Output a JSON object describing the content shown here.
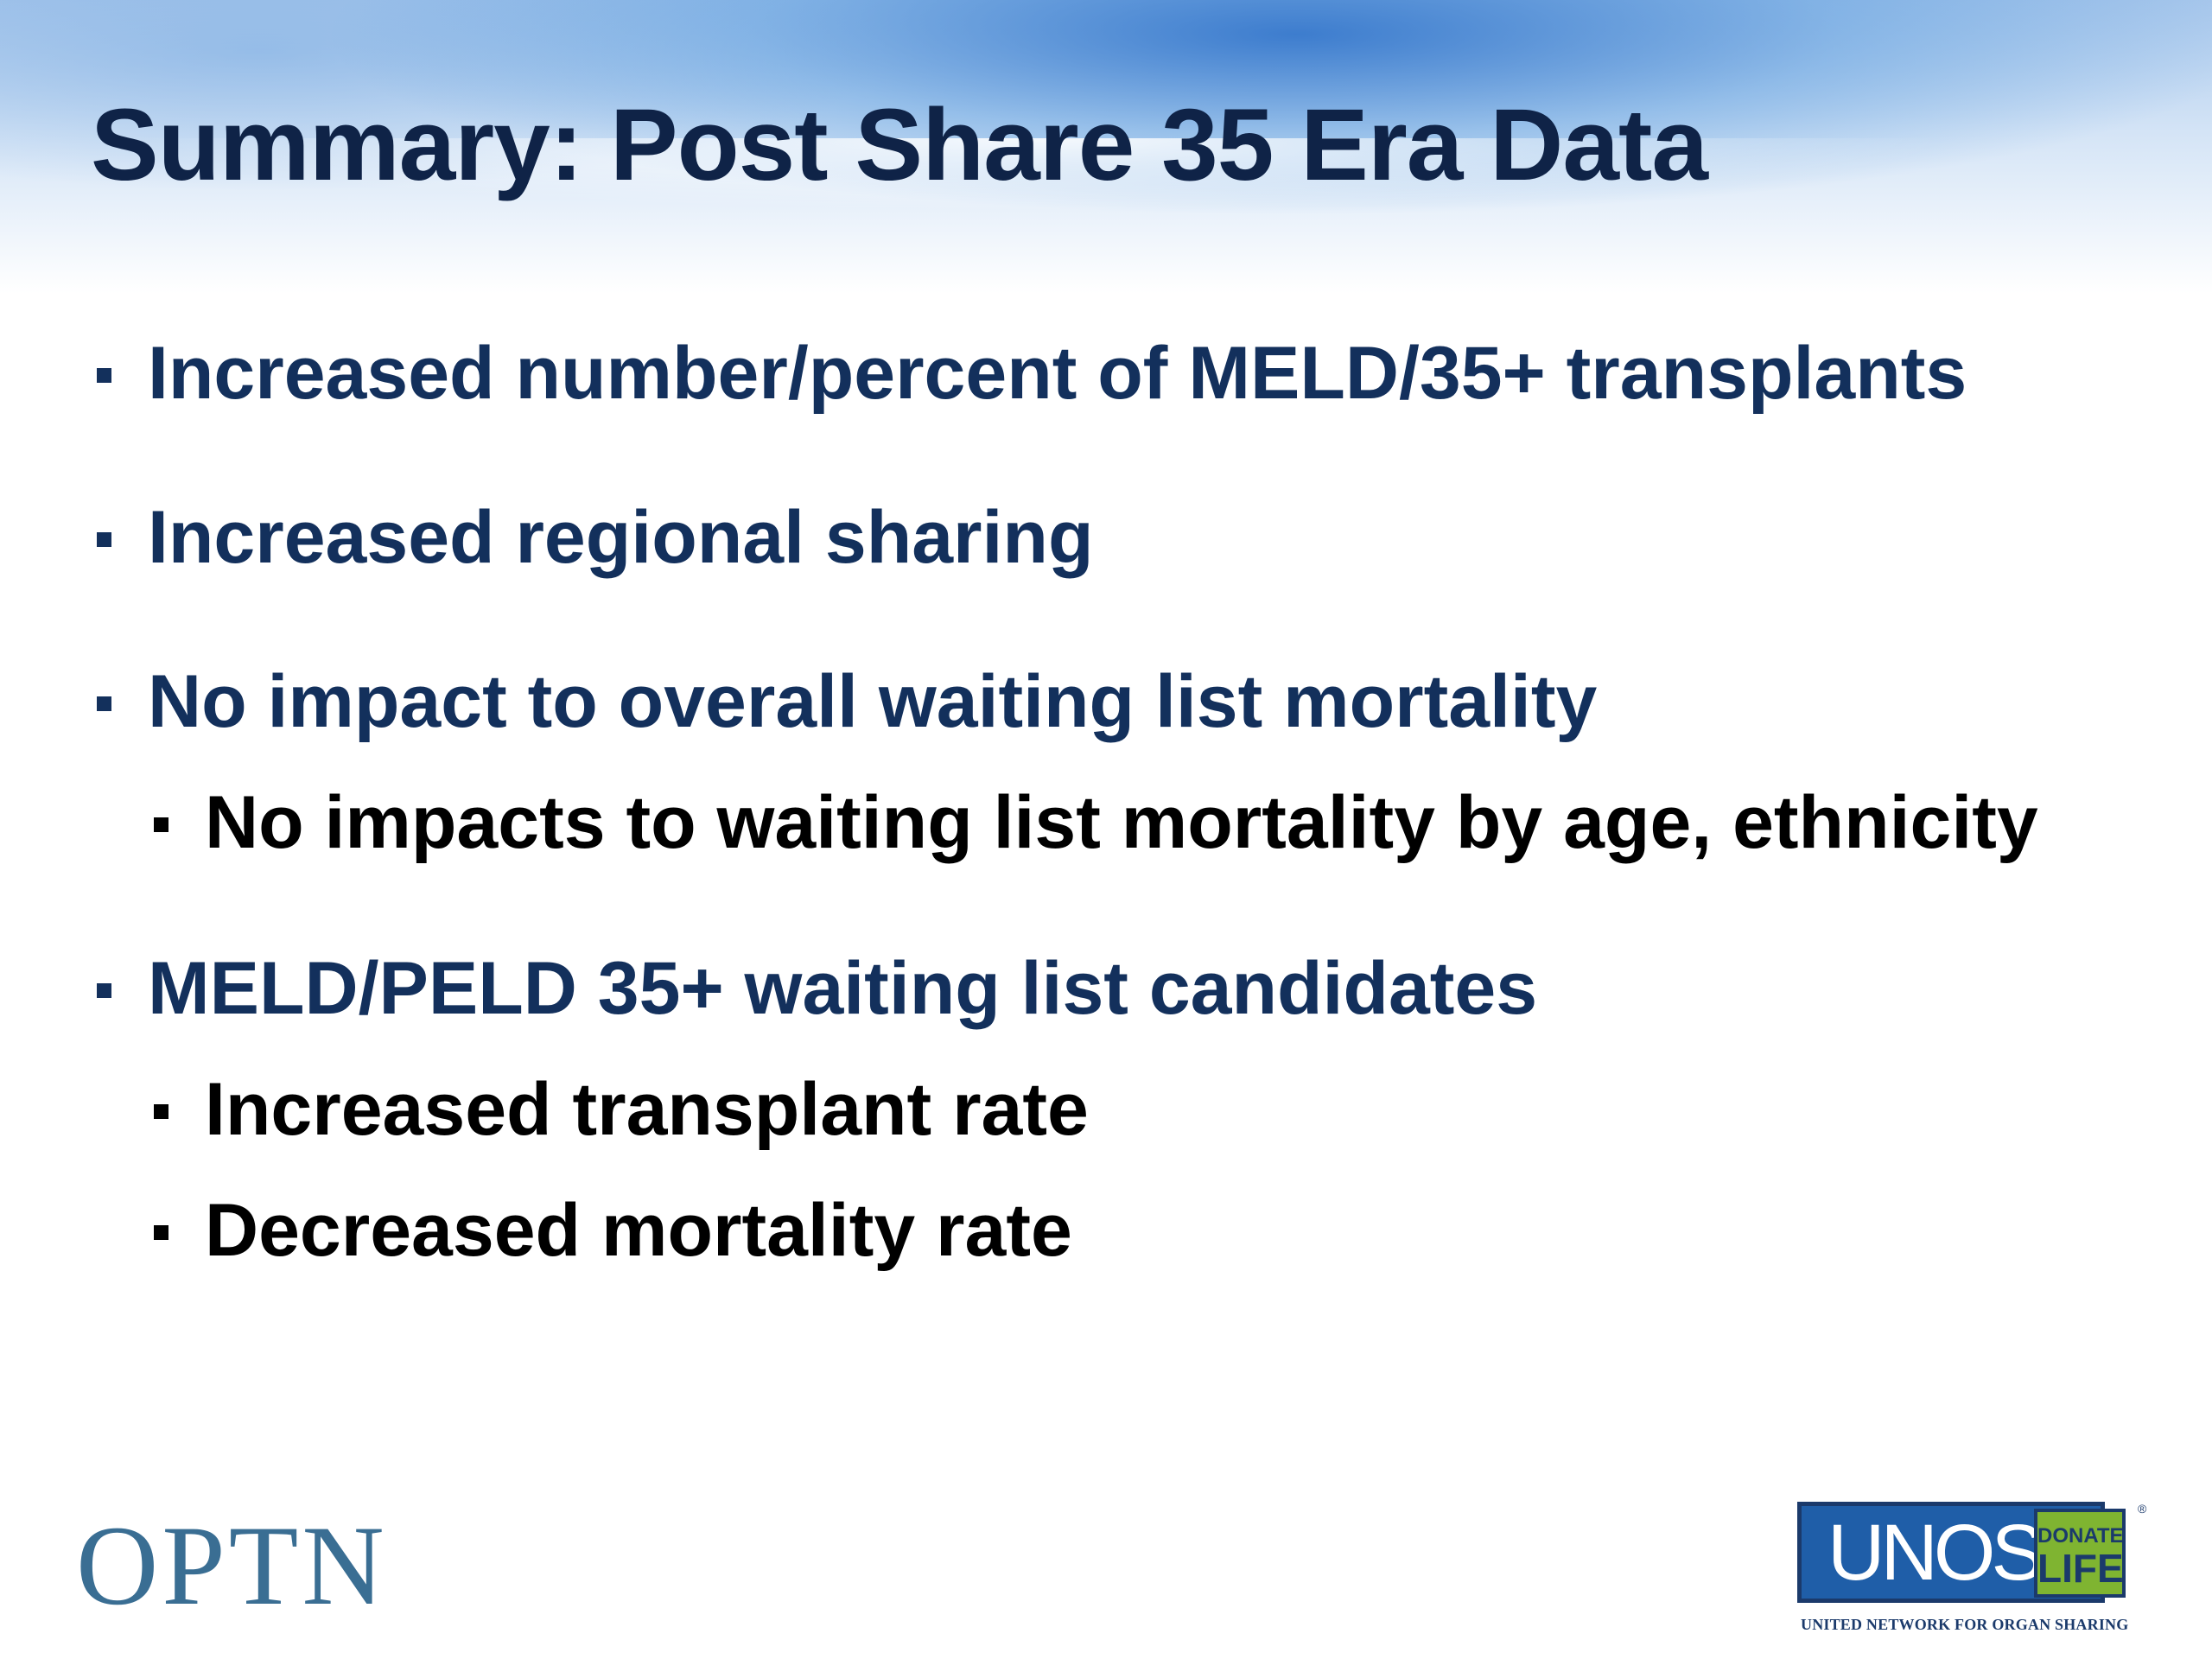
{
  "slide": {
    "title": "Summary: Post Share 35 Era Data",
    "bullets": [
      {
        "level": 1,
        "text": "Increased number/percent of MELD/35+ transplants"
      },
      {
        "level": 1,
        "text": "Increased regional sharing"
      },
      {
        "level": 1,
        "text": "No impact to overall waiting list mortality"
      },
      {
        "level": 2,
        "text": "No impacts to waiting list mortality by age, ethnicity"
      },
      {
        "level": 1,
        "text": "MELD/PELD 35+ waiting list candidates"
      },
      {
        "level": 2,
        "text": "Increased transplant rate"
      },
      {
        "level": 2,
        "text": "Decreased mortality rate"
      }
    ]
  },
  "footer": {
    "left_logo": "OPTN",
    "right_logo": {
      "name": "UNOS",
      "badge_top": "DONATE",
      "badge_bottom": "LIFE",
      "tagline": "UNITED NETWORK FOR ORGAN SHARING"
    }
  },
  "colors": {
    "title": "#0f2347",
    "level1_text": "#13305c",
    "level2_text": "#000000",
    "optn": "#3a6e93",
    "unos_blue": "#1f5ea8",
    "donate_life_green": "#7fb431"
  }
}
